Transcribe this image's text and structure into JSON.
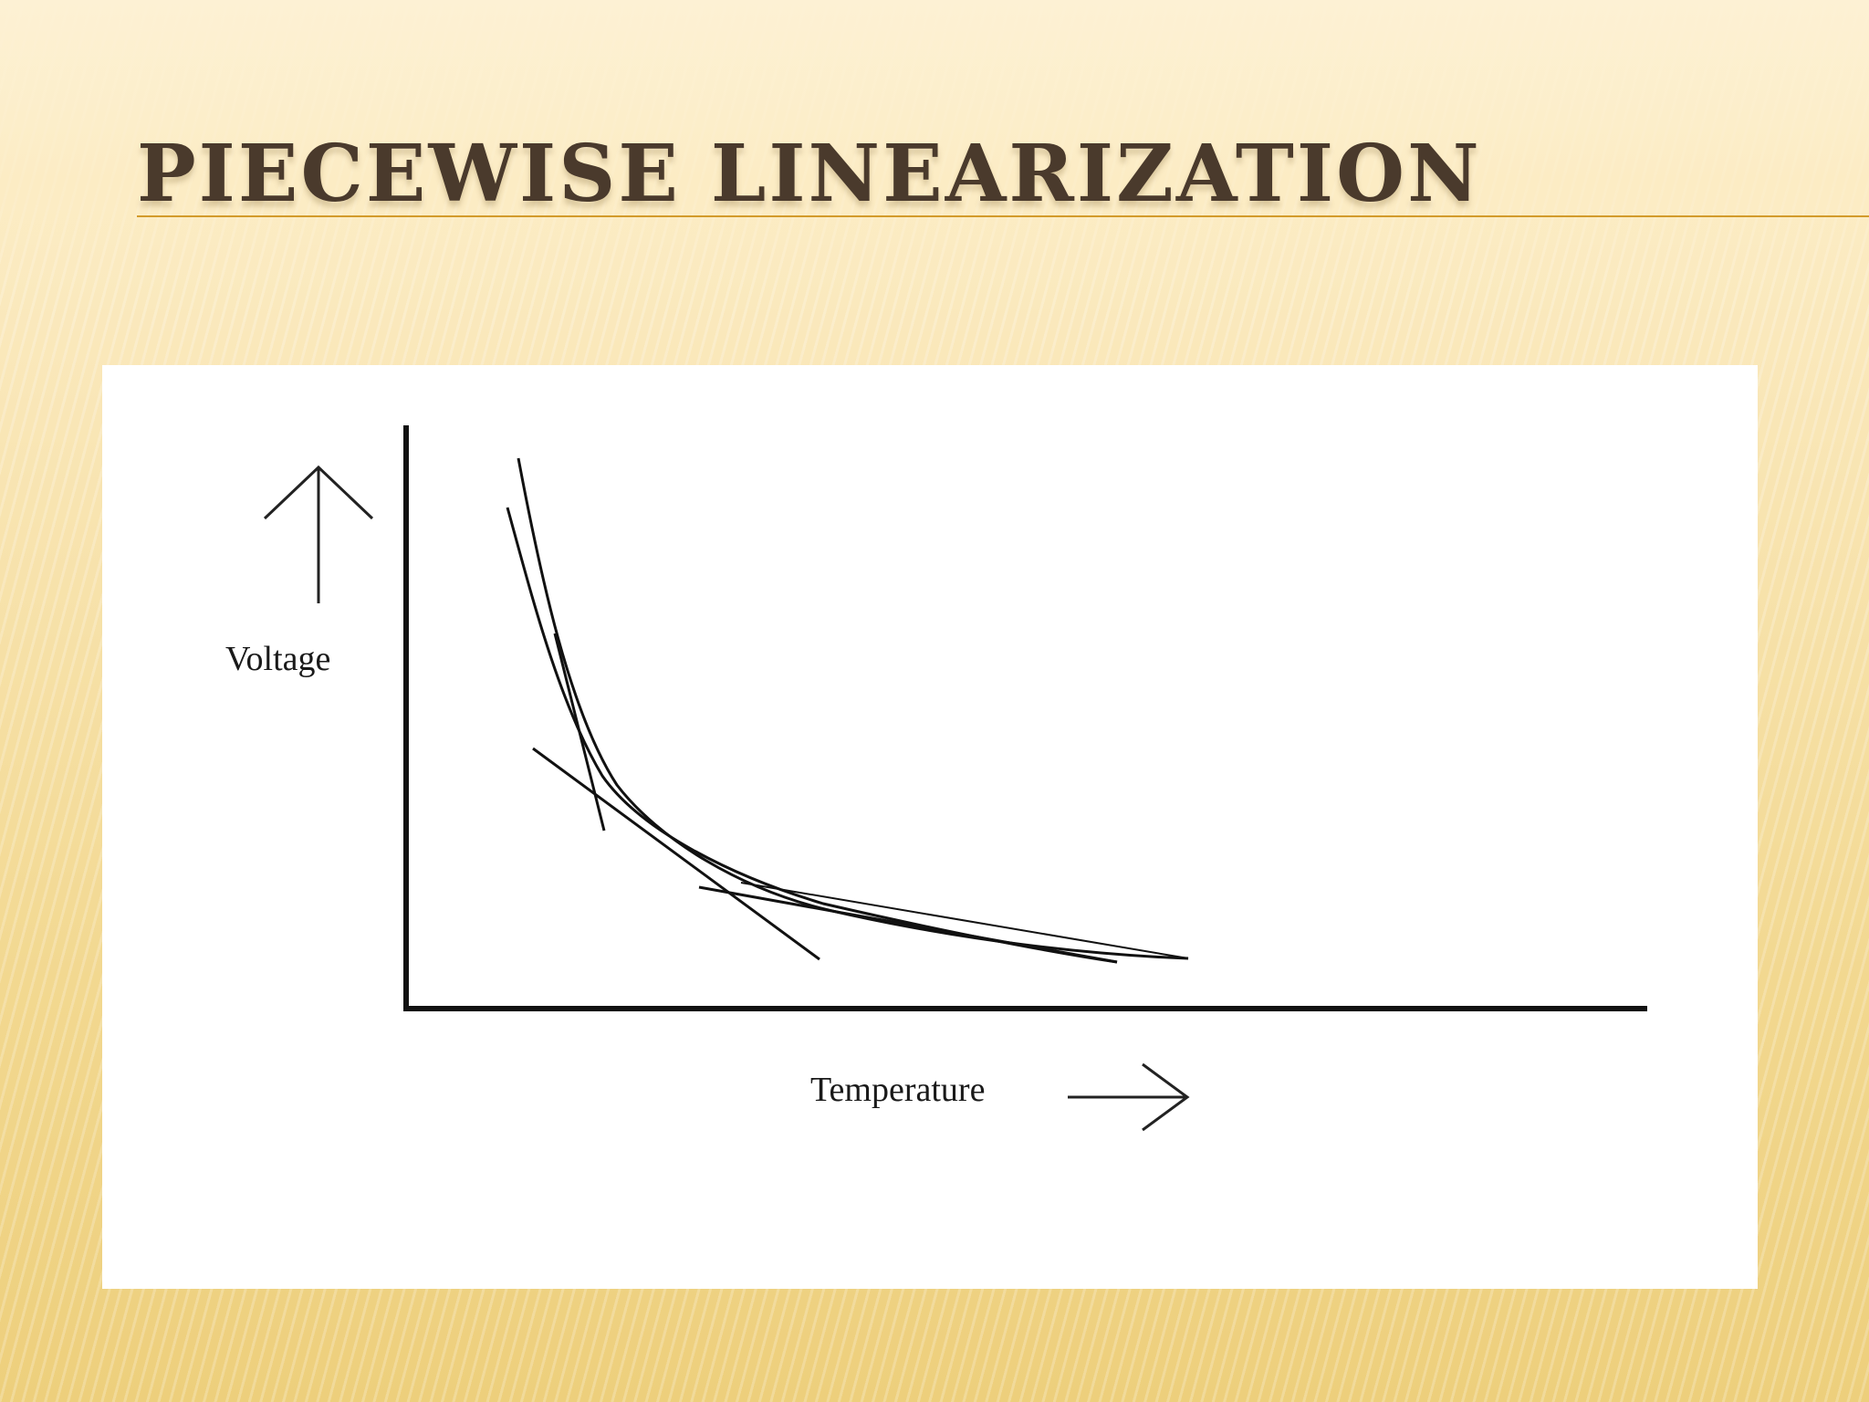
{
  "slide": {
    "title": "PIECEWISE LINEARIZATION"
  },
  "figure": {
    "y_label": "Voltage",
    "x_label": "Temperature",
    "curve": "decreasing-hyperbolic",
    "approximating_segments": 4,
    "colors": {
      "ink": "#111111",
      "title": "#4a3a2c",
      "title_rule": "#d39b2b",
      "panel": "#ffffff"
    },
    "icons": [
      "up-arrow-icon",
      "right-arrow-icon"
    ]
  }
}
